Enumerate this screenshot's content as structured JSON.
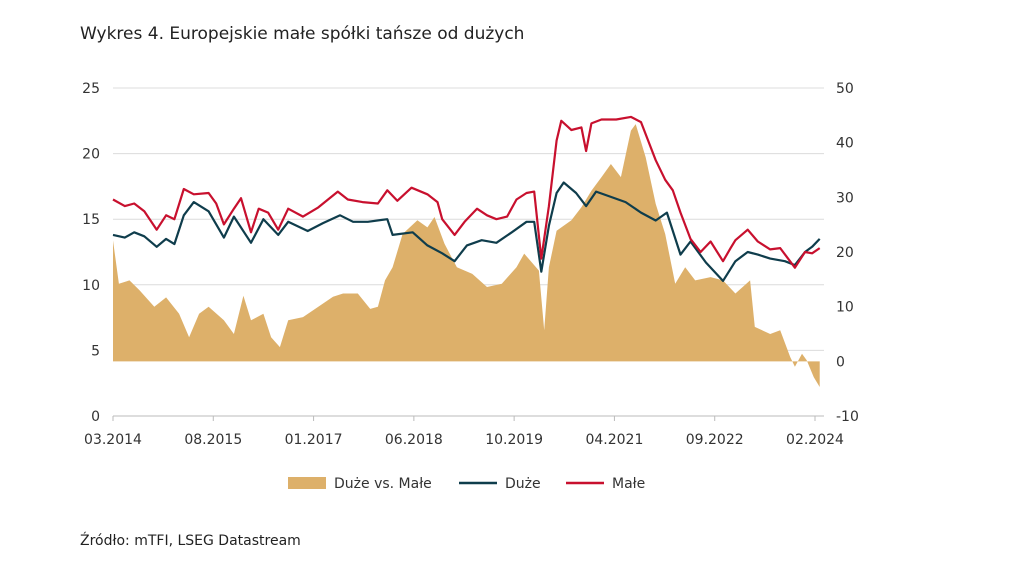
{
  "chart_data": {
    "type": "area+line",
    "title": "Wykres 4. Europejskie małe spółki tańsze od dużych",
    "source": "Źródło: mTFI, LSEG Datastream",
    "x_unit": "months since 03.2014",
    "x_ticks": [
      {
        "t": 0,
        "label": "03.2014"
      },
      {
        "t": 17,
        "label": "08.2015"
      },
      {
        "t": 34,
        "label": "01.2017"
      },
      {
        "t": 51,
        "label": "06.2018"
      },
      {
        "t": 68,
        "label": "10.2019"
      },
      {
        "t": 85,
        "label": "04.2021"
      },
      {
        "t": 102,
        "label": "09.2022"
      },
      {
        "t": 119,
        "label": "02.2024"
      }
    ],
    "xlim": [
      0,
      120
    ],
    "y_left": {
      "ticks": [
        0,
        5,
        10,
        15,
        20,
        25
      ],
      "ylim": [
        0,
        25
      ]
    },
    "y_right": {
      "ticks": [
        -10,
        0,
        10,
        20,
        30,
        40,
        50
      ],
      "ylim": [
        -10,
        50
      ]
    },
    "grid": true,
    "legend_position": "bottom",
    "series": [
      {
        "name": "Duże vs. Małe",
        "type": "area",
        "axis": "right",
        "color": "#DDB06A",
        "t": [
          0,
          1,
          2.8,
          4.5,
          7,
          9,
          11.2,
          12.9,
          14.6,
          16.2,
          18.8,
          20.5,
          22.1,
          23.4,
          25.5,
          26.8,
          28.3,
          29.7,
          32.2,
          34.8,
          37.3,
          39,
          41.5,
          43.6,
          44.9,
          46.1,
          47.4,
          49.1,
          51.6,
          53.3,
          54.5,
          56.2,
          58.3,
          60.9,
          63.4,
          65.9,
          68.4,
          69.7,
          72.2,
          73.1,
          73.9,
          75.2,
          77.7,
          79.4,
          81.1,
          82.8,
          84.4,
          86.1,
          87.8,
          88.6,
          90.3,
          92,
          93.6,
          95.3,
          97,
          98.7,
          101.3,
          103.4,
          105.5,
          108,
          108.8,
          111.4,
          113.1,
          114.8,
          115.6,
          116.8,
          117.6,
          118.8,
          119.8
        ],
        "values": [
          22.1,
          14.2,
          14.8,
          13,
          10,
          11.7,
          8.7,
          4.4,
          8.7,
          10,
          7.5,
          5,
          12,
          7.5,
          8.7,
          4.4,
          2.6,
          7.5,
          8.1,
          10,
          11.8,
          12.4,
          12.4,
          9.6,
          10,
          14.8,
          17.2,
          23.3,
          25.8,
          24.5,
          26.4,
          21.5,
          17.2,
          16,
          13.6,
          14.2,
          17.2,
          19.7,
          16.6,
          5.7,
          17.2,
          23.9,
          25.8,
          28.2,
          31.2,
          33.7,
          36.1,
          33.7,
          42.2,
          43.4,
          37.3,
          28.8,
          23.3,
          14.2,
          17.2,
          14.8,
          15.4,
          14.8,
          12.4,
          14.8,
          6.3,
          5,
          5.7,
          0.8,
          -1,
          1.4,
          0.2,
          -2.9,
          -4.7
        ]
      },
      {
        "name": "Duże",
        "type": "line",
        "axis": "left",
        "color": "#0F3D4C",
        "t": [
          0,
          2,
          3.6,
          5.3,
          7.4,
          9,
          10.4,
          12,
          13.7,
          16.2,
          18.8,
          20.5,
          23.4,
          25.5,
          28,
          29.7,
          33,
          35.6,
          38.5,
          40.7,
          43.2,
          46.5,
          47.4,
          50.8,
          53.3,
          55.8,
          57.9,
          60,
          62.5,
          65,
          67.6,
          70.1,
          71.4,
          72.6,
          73.9,
          75.2,
          76.4,
          78.5,
          80.2,
          81.9,
          84.4,
          86.9,
          89.5,
          92,
          93.9,
          96.2,
          97.9,
          100.5,
          103.4,
          105.5,
          107.6,
          109.3,
          111.4,
          113.9,
          115.6,
          117.3,
          118.5,
          119.8
        ],
        "values": [
          13.8,
          13.6,
          14,
          13.7,
          12.9,
          13.5,
          13.1,
          15.3,
          16.3,
          15.6,
          13.6,
          15.2,
          13.2,
          15,
          13.8,
          14.8,
          14.1,
          14.7,
          15.3,
          14.8,
          14.8,
          15,
          13.8,
          14,
          13,
          12.4,
          11.8,
          13,
          13.4,
          13.2,
          14,
          14.8,
          14.8,
          11,
          14.5,
          17,
          17.8,
          17,
          16,
          17.1,
          16.7,
          16.3,
          15.5,
          14.9,
          15.5,
          12.3,
          13.3,
          11.7,
          10.3,
          11.8,
          12.5,
          12.3,
          12,
          11.8,
          11.5,
          12.5,
          12.9,
          13.5
        ]
      },
      {
        "name": "Małe",
        "type": "line",
        "axis": "left",
        "color": "#C8102E",
        "t": [
          0,
          2,
          3.6,
          5.3,
          7.4,
          9,
          10.4,
          12,
          13.7,
          16.2,
          17.5,
          18.8,
          20.5,
          21.7,
          23.4,
          24.7,
          26.3,
          28,
          29.7,
          32.2,
          34.8,
          38.1,
          39.8,
          42.3,
          44.9,
          46.5,
          48.2,
          50.6,
          53.3,
          55,
          55.8,
          57.9,
          59.6,
          61.7,
          63.4,
          65,
          66.8,
          68.4,
          70.1,
          71.4,
          72.6,
          73.9,
          75.2,
          76,
          77.7,
          79.4,
          80.2,
          81.1,
          82.8,
          85.3,
          87.8,
          89.5,
          90.7,
          92,
          93.6,
          94.9,
          96.2,
          97.9,
          99.6,
          101.3,
          103.4,
          104.7,
          105.5,
          107.6,
          109.3,
          111.4,
          113.1,
          115.6,
          117.3,
          118.5,
          119.8
        ],
        "values": [
          16.5,
          16,
          16.2,
          15.6,
          14.2,
          15.3,
          15,
          17.3,
          16.9,
          17,
          16.2,
          14.6,
          15.8,
          16.6,
          14,
          15.8,
          15.5,
          14.2,
          15.8,
          15.2,
          15.9,
          17.1,
          16.5,
          16.3,
          16.2,
          17.2,
          16.4,
          17.4,
          16.9,
          16.3,
          15,
          13.8,
          14.8,
          15.8,
          15.3,
          15,
          15.2,
          16.5,
          17,
          17.1,
          12,
          16,
          21,
          22.5,
          21.8,
          22,
          20.2,
          22.3,
          22.6,
          22.6,
          22.8,
          22.4,
          21,
          19.5,
          18,
          17.2,
          15.5,
          13.5,
          12.5,
          13.3,
          11.8,
          12.8,
          13.4,
          14.2,
          13.3,
          12.7,
          12.8,
          11.3,
          12.5,
          12.4,
          12.8
        ]
      }
    ]
  }
}
